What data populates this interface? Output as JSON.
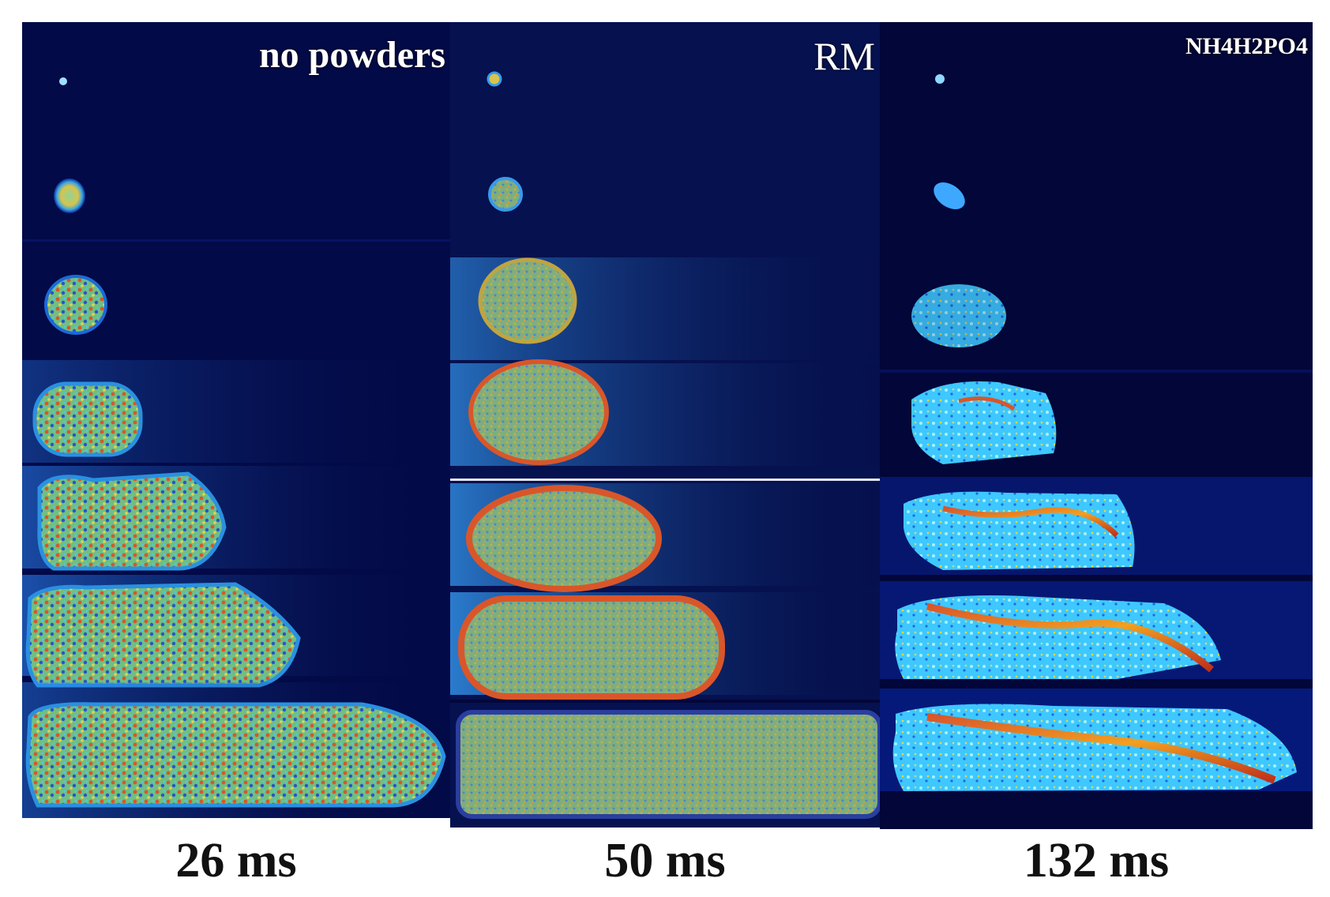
{
  "panels": [
    {
      "title": "no powders",
      "caption": "26 ms"
    },
    {
      "title": "RM",
      "caption": "50 ms"
    },
    {
      "title": "NH4H2PO4",
      "caption": "132 ms"
    }
  ],
  "colors": {
    "background": "#02073a",
    "glow": "#2f8cff",
    "speckle_green": "#7fbf7a",
    "speckle_red": "#d9562a",
    "speckle_cyan": "#4ec8e8",
    "caption_text": "#111111",
    "title_text": "#ffffff"
  }
}
